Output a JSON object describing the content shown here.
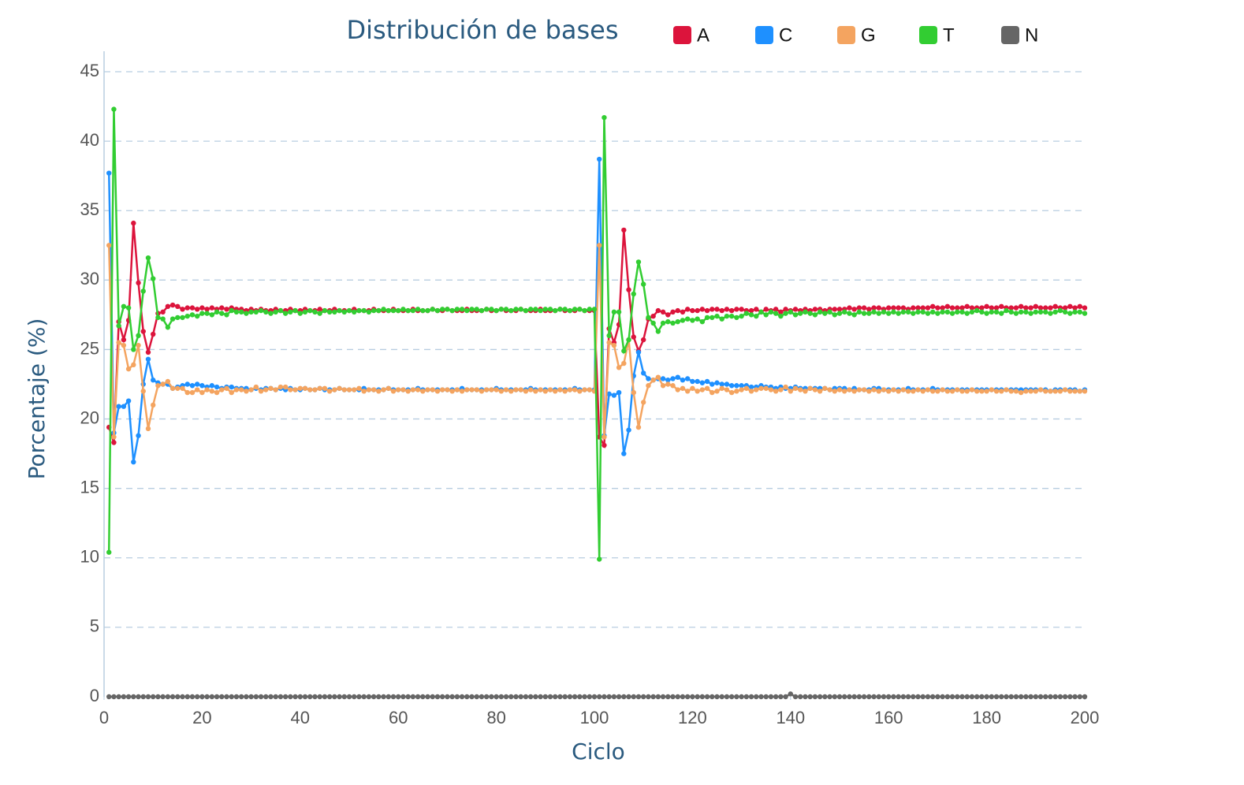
{
  "chart_data": {
    "type": "line",
    "title": "Distribución de bases",
    "x_label": "Ciclo",
    "y_label": "Porcentaje (%)",
    "xlim": [
      0,
      200
    ],
    "xticks": [
      0,
      20,
      40,
      60,
      80,
      100,
      120,
      140,
      160,
      180,
      200
    ],
    "ylim": [
      0,
      45
    ],
    "yticks": [
      0,
      5,
      10,
      15,
      20,
      25,
      30,
      35,
      40,
      45
    ],
    "grid": true,
    "legend": "top",
    "x": [
      1,
      2,
      3,
      4,
      5,
      6,
      7,
      8,
      9,
      10,
      11,
      12,
      13,
      14,
      15,
      16,
      17,
      18,
      19,
      20,
      21,
      22,
      23,
      24,
      25,
      26,
      27,
      28,
      29,
      30,
      31,
      32,
      33,
      34,
      35,
      36,
      37,
      38,
      39,
      40,
      41,
      42,
      43,
      44,
      45,
      46,
      47,
      48,
      49,
      50,
      51,
      52,
      53,
      54,
      55,
      56,
      57,
      58,
      59,
      60,
      61,
      62,
      63,
      64,
      65,
      66,
      67,
      68,
      69,
      70,
      71,
      72,
      73,
      74,
      75,
      76,
      77,
      78,
      79,
      80,
      81,
      82,
      83,
      84,
      85,
      86,
      87,
      88,
      89,
      90,
      91,
      92,
      93,
      94,
      95,
      96,
      97,
      98,
      99,
      100,
      101,
      102,
      103,
      104,
      105,
      106,
      107,
      108,
      109,
      110,
      111,
      112,
      113,
      114,
      115,
      116,
      117,
      118,
      119,
      120,
      121,
      122,
      123,
      124,
      125,
      126,
      127,
      128,
      129,
      130,
      131,
      132,
      133,
      134,
      135,
      136,
      137,
      138,
      139,
      140,
      141,
      142,
      143,
      144,
      145,
      146,
      147,
      148,
      149,
      150,
      151,
      152,
      153,
      154,
      155,
      156,
      157,
      158,
      159,
      160,
      161,
      162,
      163,
      164,
      165,
      166,
      167,
      168,
      169,
      170,
      171,
      172,
      173,
      174,
      175,
      176,
      177,
      178,
      179,
      180,
      181,
      182,
      183,
      184,
      185,
      186,
      187,
      188,
      189,
      190,
      191,
      192,
      193,
      194,
      195,
      196,
      197,
      198,
      199,
      200
    ],
    "series": [
      {
        "name": "A",
        "color": "#dc143c",
        "values": [
          19.4,
          18.3,
          27.0,
          25.7,
          27.1,
          34.1,
          29.8,
          26.3,
          24.8,
          26.1,
          27.6,
          27.7,
          28.1,
          28.2,
          28.1,
          27.9,
          28.0,
          28.0,
          27.9,
          28.0,
          27.9,
          28.0,
          27.9,
          28.0,
          27.9,
          28.0,
          27.9,
          27.9,
          27.8,
          27.9,
          27.8,
          27.9,
          27.8,
          27.8,
          27.9,
          27.8,
          27.8,
          27.9,
          27.8,
          27.8,
          27.9,
          27.8,
          27.8,
          27.9,
          27.8,
          27.8,
          27.9,
          27.8,
          27.8,
          27.8,
          27.9,
          27.8,
          27.8,
          27.8,
          27.9,
          27.8,
          27.8,
          27.8,
          27.9,
          27.8,
          27.8,
          27.8,
          27.9,
          27.8,
          27.8,
          27.8,
          27.9,
          27.8,
          27.8,
          27.9,
          27.8,
          27.8,
          27.8,
          27.9,
          27.8,
          27.8,
          27.8,
          27.9,
          27.8,
          27.8,
          27.9,
          27.8,
          27.8,
          27.8,
          27.9,
          27.8,
          27.8,
          27.8,
          27.9,
          27.8,
          27.8,
          27.8,
          27.9,
          27.8,
          27.8,
          27.8,
          27.9,
          27.8,
          27.8,
          27.8,
          18.7,
          18.1,
          26.5,
          25.5,
          26.8,
          33.6,
          29.3,
          25.9,
          24.9,
          25.7,
          27.2,
          27.4,
          27.8,
          27.7,
          27.5,
          27.7,
          27.8,
          27.7,
          27.9,
          27.8,
          27.8,
          27.9,
          27.8,
          27.9,
          27.9,
          27.8,
          27.9,
          27.8,
          27.9,
          27.9,
          27.8,
          27.8,
          27.9,
          27.7,
          27.9,
          27.8,
          27.9,
          27.7,
          27.9,
          27.8,
          27.9,
          27.8,
          27.9,
          27.8,
          27.9,
          27.9,
          27.8,
          27.9,
          27.9,
          27.9,
          27.9,
          28.0,
          27.9,
          28.0,
          28.0,
          27.9,
          28.0,
          28.0,
          27.9,
          28.0,
          28.0,
          28.0,
          28.0,
          27.9,
          28.0,
          28.0,
          28.0,
          28.0,
          28.1,
          28.0,
          28.0,
          28.1,
          28.0,
          28.0,
          28.0,
          28.1,
          28.0,
          28.0,
          28.0,
          28.1,
          28.0,
          28.0,
          28.1,
          28.0,
          28.0,
          28.0,
          28.1,
          28.0,
          28.0,
          28.1,
          28.0,
          28.0,
          28.0,
          28.1,
          28.0,
          28.0,
          28.1,
          28.0,
          28.1,
          28.0
        ]
      },
      {
        "name": "C",
        "color": "#1e90ff",
        "values": [
          37.7,
          19.0,
          20.9,
          20.9,
          21.3,
          16.9,
          18.8,
          22.5,
          24.3,
          22.8,
          22.6,
          22.5,
          22.5,
          22.2,
          22.3,
          22.4,
          22.5,
          22.4,
          22.5,
          22.4,
          22.3,
          22.4,
          22.3,
          22.2,
          22.3,
          22.3,
          22.2,
          22.2,
          22.2,
          22.1,
          22.2,
          22.1,
          22.2,
          22.2,
          22.1,
          22.2,
          22.1,
          22.2,
          22.1,
          22.1,
          22.2,
          22.1,
          22.1,
          22.2,
          22.1,
          22.1,
          22.1,
          22.2,
          22.1,
          22.1,
          22.1,
          22.1,
          22.2,
          22.1,
          22.1,
          22.1,
          22.1,
          22.2,
          22.1,
          22.1,
          22.1,
          22.1,
          22.1,
          22.2,
          22.1,
          22.1,
          22.1,
          22.1,
          22.1,
          22.1,
          22.1,
          22.1,
          22.2,
          22.1,
          22.1,
          22.1,
          22.1,
          22.1,
          22.1,
          22.2,
          22.1,
          22.1,
          22.1,
          22.1,
          22.1,
          22.1,
          22.2,
          22.1,
          22.1,
          22.1,
          22.1,
          22.1,
          22.1,
          22.1,
          22.1,
          22.2,
          22.1,
          22.1,
          22.1,
          22.1,
          38.7,
          18.8,
          21.8,
          21.7,
          21.9,
          17.5,
          19.2,
          23.1,
          24.8,
          23.3,
          22.9,
          22.8,
          22.9,
          22.9,
          22.8,
          22.9,
          23.0,
          22.8,
          22.9,
          22.7,
          22.7,
          22.6,
          22.7,
          22.5,
          22.6,
          22.5,
          22.5,
          22.4,
          22.4,
          22.4,
          22.4,
          22.3,
          22.3,
          22.4,
          22.3,
          22.3,
          22.2,
          22.3,
          22.2,
          22.2,
          22.3,
          22.2,
          22.2,
          22.2,
          22.2,
          22.2,
          22.2,
          22.1,
          22.2,
          22.2,
          22.2,
          22.1,
          22.2,
          22.1,
          22.1,
          22.1,
          22.2,
          22.2,
          22.1,
          22.1,
          22.1,
          22.1,
          22.1,
          22.2,
          22.1,
          22.1,
          22.1,
          22.1,
          22.2,
          22.1,
          22.1,
          22.1,
          22.1,
          22.1,
          22.1,
          22.1,
          22.1,
          22.1,
          22.1,
          22.1,
          22.1,
          22.1,
          22.1,
          22.1,
          22.1,
          22.1,
          22.1,
          22.1,
          22.1,
          22.1,
          22.1,
          22.1,
          22.0,
          22.1,
          22.1,
          22.1,
          22.1,
          22.1,
          22.0,
          22.1
        ]
      },
      {
        "name": "G",
        "color": "#f4a460",
        "values": [
          32.5,
          18.7,
          25.5,
          25.3,
          23.6,
          23.9,
          25.3,
          22.0,
          19.3,
          21.0,
          22.4,
          22.5,
          22.7,
          22.2,
          22.2,
          22.2,
          21.9,
          21.9,
          22.1,
          21.9,
          22.1,
          22.0,
          21.9,
          22.1,
          22.2,
          21.9,
          22.1,
          22.1,
          22.0,
          22.1,
          22.3,
          22.0,
          22.1,
          22.2,
          22.1,
          22.3,
          22.3,
          22.1,
          22.1,
          22.2,
          22.2,
          22.1,
          22.1,
          22.2,
          22.2,
          22.0,
          22.1,
          22.2,
          22.1,
          22.1,
          22.1,
          22.2,
          22.0,
          22.1,
          22.1,
          22.0,
          22.1,
          22.2,
          22.0,
          22.1,
          22.1,
          22.0,
          22.1,
          22.1,
          22.0,
          22.1,
          22.1,
          22.0,
          22.1,
          22.1,
          22.0,
          22.1,
          22.0,
          22.1,
          22.1,
          22.1,
          22.0,
          22.1,
          22.1,
          22.1,
          22.0,
          22.1,
          22.0,
          22.1,
          22.1,
          22.0,
          22.1,
          22.0,
          22.1,
          22.0,
          22.1,
          22.0,
          22.1,
          22.0,
          22.1,
          22.1,
          22.0,
          22.1,
          22.1,
          22.0,
          32.5,
          18.7,
          25.5,
          25.3,
          23.7,
          24.0,
          25.7,
          21.9,
          19.4,
          21.2,
          22.4,
          22.8,
          23.0,
          22.4,
          22.5,
          22.4,
          22.1,
          22.2,
          22.0,
          22.2,
          22.0,
          22.1,
          22.2,
          21.9,
          22.0,
          22.2,
          22.1,
          21.9,
          22.0,
          22.1,
          22.2,
          22.0,
          22.1,
          22.2,
          22.2,
          22.1,
          22.0,
          22.1,
          22.3,
          22.0,
          22.2,
          22.1,
          22.0,
          22.2,
          22.1,
          22.0,
          22.2,
          22.1,
          22.0,
          22.1,
          22.0,
          22.1,
          22.0,
          22.1,
          22.1,
          22.0,
          22.1,
          22.0,
          22.1,
          22.0,
          22.1,
          22.0,
          22.1,
          22.0,
          22.0,
          22.1,
          22.0,
          22.1,
          22.0,
          22.0,
          22.1,
          22.0,
          22.0,
          22.1,
          22.0,
          22.0,
          22.1,
          22.0,
          22.0,
          22.0,
          22.1,
          22.0,
          22.0,
          22.1,
          22.0,
          22.0,
          21.9,
          22.0,
          22.0,
          22.0,
          22.1,
          22.0,
          22.0,
          22.0,
          22.0,
          22.1,
          22.0,
          22.0,
          22.0,
          22.0
        ]
      },
      {
        "name": "T",
        "color": "#32cd32",
        "values": [
          10.4,
          42.3,
          26.7,
          28.1,
          28.0,
          25.0,
          26.0,
          29.2,
          31.6,
          30.1,
          27.3,
          27.2,
          26.6,
          27.2,
          27.3,
          27.3,
          27.4,
          27.5,
          27.4,
          27.6,
          27.6,
          27.5,
          27.7,
          27.6,
          27.5,
          27.8,
          27.7,
          27.7,
          27.6,
          27.7,
          27.7,
          27.8,
          27.7,
          27.6,
          27.7,
          27.8,
          27.6,
          27.7,
          27.8,
          27.6,
          27.7,
          27.8,
          27.7,
          27.6,
          27.8,
          27.7,
          27.7,
          27.8,
          27.7,
          27.8,
          27.7,
          27.8,
          27.8,
          27.7,
          27.8,
          27.8,
          27.9,
          27.8,
          27.8,
          27.8,
          27.9,
          27.8,
          27.8,
          27.9,
          27.8,
          27.8,
          27.9,
          27.8,
          27.9,
          27.9,
          27.8,
          27.9,
          27.9,
          27.8,
          27.9,
          27.9,
          27.8,
          27.9,
          27.9,
          27.8,
          27.9,
          27.9,
          27.8,
          27.9,
          27.9,
          27.8,
          27.9,
          27.9,
          27.8,
          27.9,
          27.9,
          27.8,
          27.9,
          27.9,
          27.8,
          27.9,
          27.9,
          27.8,
          27.9,
          27.9,
          9.9,
          41.7,
          26.0,
          27.7,
          27.7,
          24.9,
          25.7,
          29.0,
          31.3,
          29.7,
          27.3,
          26.9,
          26.3,
          26.9,
          27.0,
          26.9,
          27.0,
          27.1,
          27.2,
          27.1,
          27.2,
          27.0,
          27.3,
          27.3,
          27.4,
          27.2,
          27.4,
          27.4,
          27.3,
          27.4,
          27.6,
          27.5,
          27.4,
          27.7,
          27.5,
          27.7,
          27.6,
          27.4,
          27.6,
          27.7,
          27.5,
          27.6,
          27.7,
          27.6,
          27.5,
          27.7,
          27.6,
          27.7,
          27.5,
          27.6,
          27.7,
          27.6,
          27.5,
          27.7,
          27.6,
          27.6,
          27.7,
          27.6,
          27.7,
          27.6,
          27.7,
          27.6,
          27.7,
          27.7,
          27.6,
          27.7,
          27.7,
          27.6,
          27.7,
          27.6,
          27.7,
          27.7,
          27.6,
          27.7,
          27.7,
          27.6,
          27.7,
          27.8,
          27.7,
          27.6,
          27.7,
          27.7,
          27.6,
          27.8,
          27.7,
          27.6,
          27.7,
          27.7,
          27.6,
          27.7,
          27.7,
          27.7,
          27.6,
          27.7,
          27.8,
          27.7,
          27.6,
          27.7,
          27.7,
          27.6
        ]
      },
      {
        "name": "N",
        "color": "#666666",
        "values": [
          0,
          0,
          0,
          0,
          0,
          0,
          0,
          0,
          0,
          0,
          0,
          0,
          0,
          0,
          0,
          0,
          0,
          0,
          0,
          0,
          0,
          0,
          0,
          0,
          0,
          0,
          0,
          0,
          0,
          0,
          0,
          0,
          0,
          0,
          0,
          0,
          0,
          0,
          0,
          0,
          0,
          0,
          0,
          0,
          0,
          0,
          0,
          0,
          0,
          0,
          0,
          0,
          0,
          0,
          0,
          0,
          0,
          0,
          0,
          0,
          0,
          0,
          0,
          0,
          0,
          0,
          0,
          0,
          0,
          0,
          0,
          0,
          0,
          0,
          0,
          0,
          0,
          0,
          0,
          0,
          0,
          0,
          0,
          0,
          0,
          0,
          0,
          0,
          0,
          0,
          0,
          0,
          0,
          0,
          0,
          0,
          0,
          0,
          0,
          0,
          0,
          0,
          0,
          0,
          0,
          0,
          0,
          0,
          0,
          0,
          0,
          0,
          0,
          0,
          0,
          0,
          0,
          0,
          0,
          0,
          0,
          0,
          0,
          0,
          0,
          0,
          0,
          0,
          0,
          0,
          0,
          0,
          0,
          0,
          0,
          0,
          0,
          0,
          0,
          0.2,
          0,
          0,
          0,
          0,
          0,
          0,
          0,
          0,
          0,
          0,
          0,
          0,
          0,
          0,
          0,
          0,
          0,
          0,
          0,
          0,
          0,
          0,
          0,
          0,
          0,
          0,
          0,
          0,
          0,
          0,
          0,
          0,
          0,
          0,
          0,
          0,
          0,
          0,
          0,
          0,
          0,
          0,
          0,
          0,
          0,
          0,
          0,
          0,
          0,
          0,
          0,
          0,
          0,
          0,
          0,
          0,
          0,
          0,
          0,
          0
        ]
      }
    ]
  }
}
